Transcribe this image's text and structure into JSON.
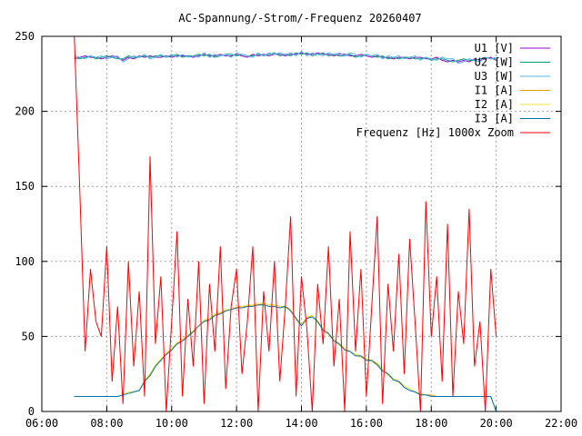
{
  "chart_data": {
    "type": "line",
    "title": "AC-Spannung/-Strom/-Frequenz 20260407",
    "xlabel": "",
    "ylabel": "",
    "xlim": [
      6,
      22
    ],
    "ylim": [
      0,
      250
    ],
    "grid": true,
    "legend_position": "top-right",
    "x_ticks": [
      "06:00",
      "08:00",
      "10:00",
      "12:00",
      "14:00",
      "16:00",
      "18:00",
      "20:00",
      "22:00"
    ],
    "y_ticks": [
      "0",
      "50",
      "100",
      "150",
      "200",
      "250"
    ],
    "x_start_hours": 7.0,
    "x_step_hours": 0.16667,
    "series": [
      {
        "name": "U1 [V]",
        "color": "#9400d3",
        "values": [
          235,
          236,
          237,
          236,
          236,
          235,
          236,
          237,
          236,
          234,
          236,
          235,
          237,
          236,
          237,
          236,
          236,
          237,
          236,
          237,
          237,
          237,
          236,
          237,
          238,
          237,
          237,
          238,
          237,
          237,
          238,
          237,
          236,
          238,
          237,
          238,
          237,
          238,
          238,
          237,
          238,
          238,
          239,
          238,
          238,
          239,
          238,
          238,
          237,
          238,
          238,
          237,
          237,
          238,
          237,
          236,
          237,
          236,
          236,
          235,
          236,
          236,
          235,
          236,
          236,
          235,
          235,
          236,
          234,
          233,
          234,
          233,
          234,
          233,
          235,
          234,
          235,
          236,
          234
        ]
      },
      {
        "name": "U2 [W]",
        "color": "#009e73",
        "values": [
          236,
          235,
          236,
          237,
          235,
          236,
          237,
          236,
          235,
          235,
          237,
          236,
          236,
          237,
          236,
          237,
          237,
          236,
          237,
          238,
          236,
          237,
          237,
          238,
          237,
          238,
          236,
          237,
          238,
          238,
          237,
          238,
          237,
          237,
          238,
          237,
          238,
          239,
          237,
          238,
          237,
          239,
          238,
          239,
          237,
          238,
          239,
          237,
          238,
          237,
          237,
          238,
          236,
          237,
          238,
          237,
          236,
          237,
          235,
          236,
          235,
          236,
          236,
          235,
          235,
          236,
          234,
          235,
          235,
          234,
          233,
          234,
          235,
          234,
          234,
          235,
          236,
          235,
          235
        ]
      },
      {
        "name": "U3 [W]",
        "color": "#56b4e9",
        "values": [
          237,
          236,
          235,
          237,
          236,
          237,
          235,
          236,
          237,
          233,
          235,
          237,
          236,
          238,
          235,
          236,
          238,
          236,
          238,
          236,
          238,
          236,
          237,
          236,
          239,
          236,
          238,
          237,
          238,
          236,
          239,
          238,
          237,
          236,
          239,
          237,
          239,
          238,
          239,
          238,
          239,
          237,
          240,
          237,
          239,
          238,
          237,
          239,
          238,
          239,
          237,
          239,
          238,
          236,
          238,
          237,
          238,
          235,
          237,
          236,
          237,
          235,
          236,
          237,
          234,
          236,
          235,
          234,
          236,
          235,
          235,
          232,
          233,
          235,
          234,
          233,
          236,
          235,
          236
        ]
      },
      {
        "name": "I1 [A]",
        "color": "#e69f00",
        "values": [
          10,
          10,
          10,
          10,
          10,
          10,
          10,
          10,
          10,
          11,
          13,
          13,
          14,
          20,
          25,
          30,
          35,
          38,
          42,
          45,
          48,
          50,
          54,
          57,
          60,
          62,
          64,
          66,
          67,
          68,
          69,
          70,
          70,
          71,
          71,
          72,
          71,
          71,
          70,
          70,
          68,
          62,
          58,
          62,
          64,
          60,
          55,
          52,
          48,
          45,
          42,
          40,
          38,
          37,
          35,
          34,
          32,
          28,
          25,
          22,
          20,
          17,
          15,
          13,
          12,
          11,
          11,
          10,
          10,
          10,
          10,
          10,
          10,
          10,
          10,
          10,
          10,
          10,
          0
        ]
      },
      {
        "name": "I2 [A]",
        "color": "#f0e442",
        "values": [
          10,
          10,
          10,
          10,
          10,
          10,
          10,
          10,
          10,
          11,
          13,
          13,
          14,
          21,
          25,
          31,
          35,
          39,
          42,
          46,
          48,
          51,
          54,
          57,
          61,
          62,
          65,
          66,
          68,
          68,
          70,
          70,
          71,
          71,
          72,
          72,
          71,
          71,
          70,
          69,
          68,
          61,
          58,
          63,
          64,
          59,
          55,
          51,
          48,
          44,
          42,
          40,
          38,
          36,
          35,
          33,
          31,
          28,
          24,
          22,
          19,
          17,
          15,
          13,
          12,
          11,
          10,
          10,
          10,
          10,
          10,
          10,
          10,
          10,
          10,
          10,
          10,
          10,
          0
        ]
      },
      {
        "name": "I3 [A]",
        "color": "#0072b2",
        "values": [
          10,
          10,
          10,
          10,
          10,
          10,
          10,
          10,
          10,
          11,
          12,
          13,
          14,
          20,
          24,
          30,
          34,
          38,
          41,
          45,
          47,
          50,
          53,
          57,
          60,
          61,
          64,
          65,
          67,
          68,
          69,
          69,
          70,
          70,
          71,
          71,
          70,
          70,
          69,
          70,
          67,
          62,
          57,
          62,
          63,
          60,
          54,
          52,
          47,
          45,
          41,
          40,
          37,
          37,
          34,
          34,
          31,
          27,
          25,
          21,
          20,
          16,
          14,
          13,
          11,
          11,
          10,
          10,
          10,
          10,
          10,
          10,
          10,
          10,
          10,
          10,
          10,
          10,
          0
        ]
      },
      {
        "name": "Frequenz [Hz] 1000x Zoom",
        "color": "#ff0000",
        "values": [
          250,
          150,
          40,
          95,
          60,
          50,
          110,
          20,
          70,
          5,
          100,
          30,
          80,
          10,
          170,
          45,
          90,
          0,
          60,
          120,
          10,
          75,
          30,
          100,
          5,
          85,
          40,
          110,
          15,
          70,
          95,
          25,
          60,
          110,
          0,
          80,
          40,
          100,
          20,
          70,
          130,
          10,
          90,
          55,
          0,
          85,
          45,
          110,
          30,
          75,
          0,
          120,
          40,
          95,
          10,
          70,
          130,
          5,
          85,
          40,
          105,
          25,
          115,
          60,
          0,
          140,
          50,
          90,
          20,
          125,
          10,
          80,
          45,
          135,
          30,
          60,
          0,
          95,
          50
        ]
      }
    ]
  }
}
